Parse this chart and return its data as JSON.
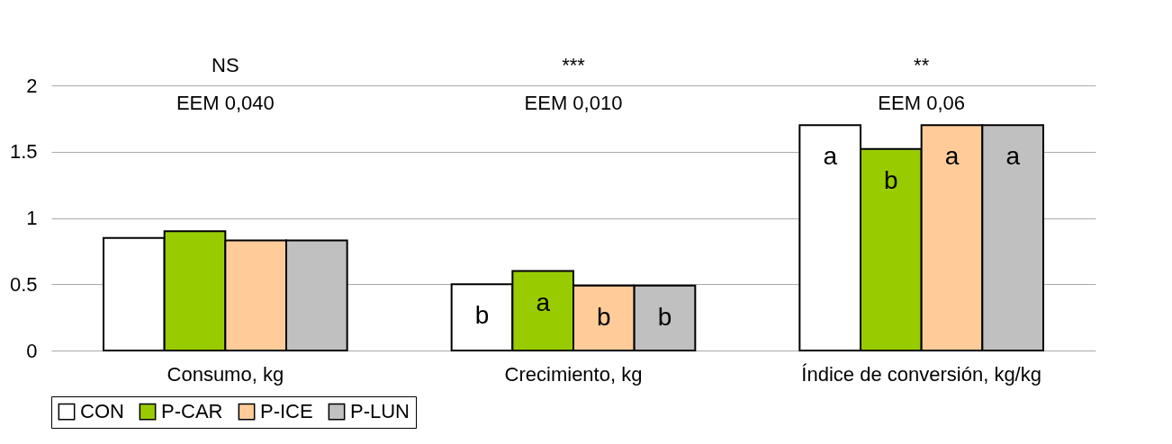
{
  "chart_data": {
    "type": "bar",
    "categories": [
      "Consumo, kg",
      "Crecimiento, kg",
      "Índice de conversión, kg/kg"
    ],
    "series": [
      {
        "name": "CON",
        "color": "#ffffff",
        "values": [
          0.85,
          0.5,
          1.7
        ],
        "value_labels": [
          null,
          "b",
          "a"
        ]
      },
      {
        "name": "P-CAR",
        "color": "#99cc00",
        "values": [
          0.9,
          0.6,
          1.52
        ],
        "value_labels": [
          null,
          "a",
          "b"
        ]
      },
      {
        "name": "P-ICE",
        "color": "#ffcc99",
        "values": [
          0.83,
          0.49,
          1.7
        ],
        "value_labels": [
          null,
          "b",
          "a"
        ]
      },
      {
        "name": "P-LUN",
        "color": "#c0c0c0",
        "values": [
          0.83,
          0.49,
          1.7
        ],
        "value_labels": [
          null,
          "b",
          "a"
        ]
      }
    ],
    "annotations": [
      "NS",
      "***",
      "**",
      "EEM 0,040",
      "EEM 0,010",
      "EEM 0,06"
    ],
    "ylim": [
      0,
      2
    ],
    "yticks": [
      0,
      0.5,
      1,
      1.5,
      2
    ],
    "grid": "y",
    "legend": "bottom"
  }
}
